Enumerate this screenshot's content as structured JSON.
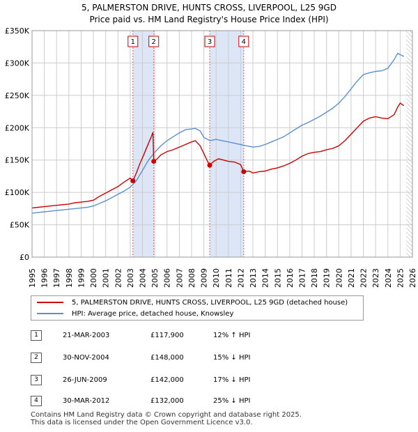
{
  "title_line1": "5, PALMERSTON DRIVE, HUNTS CROSS, LIVERPOOL, L25 9GD",
  "title_line2": "Price paid vs. HM Land Registry's House Price Index (HPI)",
  "colors": {
    "property": "#cc0000",
    "hpi": "#5b8fd0",
    "band": "#dde6f7",
    "marker_line": "#d06060",
    "grid": "#cccccc"
  },
  "chart_data": {
    "type": "line",
    "xlim": [
      1995,
      2026
    ],
    "ylim": [
      0,
      350000
    ],
    "yticks": [
      {
        "value": 0,
        "label": "£0"
      },
      {
        "value": 50000,
        "label": "£50K"
      },
      {
        "value": 100000,
        "label": "£100K"
      },
      {
        "value": 150000,
        "label": "£150K"
      },
      {
        "value": 200000,
        "label": "£200K"
      },
      {
        "value": 250000,
        "label": "£250K"
      },
      {
        "value": 300000,
        "label": "£300K"
      },
      {
        "value": 350000,
        "label": "£350K"
      }
    ],
    "xticks": [
      "1995",
      "1996",
      "1997",
      "1998",
      "1999",
      "2000",
      "2001",
      "2002",
      "2003",
      "2004",
      "2005",
      "2006",
      "2007",
      "2008",
      "2009",
      "2010",
      "2011",
      "2012",
      "2013",
      "2014",
      "2015",
      "2016",
      "2017",
      "2018",
      "2019",
      "2020",
      "2021",
      "2022",
      "2023",
      "2024",
      "2025",
      "2026"
    ],
    "shaded_bands": [
      [
        2003.22,
        2004.92
      ],
      [
        2009.48,
        2012.25
      ]
    ],
    "series": [
      {
        "name": "5, PALMERSTON DRIVE, HUNTS CROSS, LIVERPOOL, L25 9GD (detached house)",
        "color": "#cc0000",
        "points": [
          [
            1995.0,
            76000
          ],
          [
            1995.5,
            77000
          ],
          [
            1996.0,
            78000
          ],
          [
            1996.5,
            79000
          ],
          [
            1997.0,
            80000
          ],
          [
            1997.5,
            81000
          ],
          [
            1998.0,
            82000
          ],
          [
            1998.5,
            84000
          ],
          [
            1999.0,
            85000
          ],
          [
            1999.5,
            86000
          ],
          [
            2000.0,
            88000
          ],
          [
            2000.5,
            94000
          ],
          [
            2001.0,
            99000
          ],
          [
            2001.5,
            104000
          ],
          [
            2002.0,
            109000
          ],
          [
            2002.5,
            116000
          ],
          [
            2003.0,
            122000
          ],
          [
            2003.22,
            117900
          ],
          [
            2003.5,
            130000
          ],
          [
            2003.8,
            145000
          ],
          [
            2004.1,
            158000
          ],
          [
            2004.4,
            172000
          ],
          [
            2004.7,
            185000
          ],
          [
            2004.85,
            193000
          ],
          [
            2004.92,
            148000
          ],
          [
            2005.2,
            152000
          ],
          [
            2005.5,
            158000
          ],
          [
            2006.0,
            163000
          ],
          [
            2006.5,
            166000
          ],
          [
            2007.0,
            170000
          ],
          [
            2007.5,
            174000
          ],
          [
            2008.0,
            178000
          ],
          [
            2008.3,
            180000
          ],
          [
            2008.7,
            172000
          ],
          [
            2009.0,
            160000
          ],
          [
            2009.3,
            148000
          ],
          [
            2009.48,
            142000
          ],
          [
            2009.8,
            148000
          ],
          [
            2010.2,
            152000
          ],
          [
            2010.6,
            150000
          ],
          [
            2011.0,
            148000
          ],
          [
            2011.5,
            147000
          ],
          [
            2012.0,
            143000
          ],
          [
            2012.25,
            132000
          ],
          [
            2012.7,
            133000
          ],
          [
            2013.0,
            130000
          ],
          [
            2013.5,
            132000
          ],
          [
            2014.0,
            133000
          ],
          [
            2014.5,
            136000
          ],
          [
            2015.0,
            138000
          ],
          [
            2015.5,
            141000
          ],
          [
            2016.0,
            145000
          ],
          [
            2016.5,
            150000
          ],
          [
            2017.0,
            156000
          ],
          [
            2017.5,
            160000
          ],
          [
            2018.0,
            162000
          ],
          [
            2018.5,
            163000
          ],
          [
            2019.0,
            166000
          ],
          [
            2019.5,
            168000
          ],
          [
            2020.0,
            172000
          ],
          [
            2020.5,
            180000
          ],
          [
            2021.0,
            190000
          ],
          [
            2021.5,
            200000
          ],
          [
            2022.0,
            210000
          ],
          [
            2022.5,
            215000
          ],
          [
            2023.0,
            217000
          ],
          [
            2023.5,
            215000
          ],
          [
            2024.0,
            214000
          ],
          [
            2024.5,
            220000
          ],
          [
            2024.8,
            232000
          ],
          [
            2025.0,
            238000
          ],
          [
            2025.3,
            234000
          ]
        ]
      },
      {
        "name": "HPI: Average price, detached house, Knowsley",
        "color": "#5b8fd0",
        "points": [
          [
            1995.0,
            68000
          ],
          [
            1995.5,
            69000
          ],
          [
            1996.0,
            70000
          ],
          [
            1996.5,
            71000
          ],
          [
            1997.0,
            72000
          ],
          [
            1997.5,
            73000
          ],
          [
            1998.0,
            74000
          ],
          [
            1998.5,
            75000
          ],
          [
            1999.0,
            76000
          ],
          [
            1999.5,
            77000
          ],
          [
            2000.0,
            79000
          ],
          [
            2000.5,
            83000
          ],
          [
            2001.0,
            87000
          ],
          [
            2001.5,
            92000
          ],
          [
            2002.0,
            97000
          ],
          [
            2002.5,
            102000
          ],
          [
            2003.0,
            108000
          ],
          [
            2003.5,
            118000
          ],
          [
            2004.0,
            134000
          ],
          [
            2004.5,
            150000
          ],
          [
            2005.0,
            162000
          ],
          [
            2005.5,
            172000
          ],
          [
            2006.0,
            180000
          ],
          [
            2006.5,
            186000
          ],
          [
            2007.0,
            192000
          ],
          [
            2007.5,
            197000
          ],
          [
            2008.0,
            198000
          ],
          [
            2008.3,
            199000
          ],
          [
            2008.7,
            195000
          ],
          [
            2009.0,
            185000
          ],
          [
            2009.5,
            180000
          ],
          [
            2010.0,
            182000
          ],
          [
            2010.5,
            180000
          ],
          [
            2011.0,
            178000
          ],
          [
            2011.5,
            176000
          ],
          [
            2012.0,
            174000
          ],
          [
            2012.5,
            172000
          ],
          [
            2013.0,
            170000
          ],
          [
            2013.5,
            171000
          ],
          [
            2014.0,
            174000
          ],
          [
            2014.5,
            178000
          ],
          [
            2015.0,
            182000
          ],
          [
            2015.5,
            186000
          ],
          [
            2016.0,
            192000
          ],
          [
            2016.5,
            198000
          ],
          [
            2017.0,
            204000
          ],
          [
            2017.5,
            208000
          ],
          [
            2018.0,
            213000
          ],
          [
            2018.5,
            218000
          ],
          [
            2019.0,
            224000
          ],
          [
            2019.5,
            230000
          ],
          [
            2020.0,
            238000
          ],
          [
            2020.5,
            248000
          ],
          [
            2021.0,
            260000
          ],
          [
            2021.5,
            272000
          ],
          [
            2022.0,
            282000
          ],
          [
            2022.5,
            285000
          ],
          [
            2023.0,
            287000
          ],
          [
            2023.5,
            288000
          ],
          [
            2024.0,
            292000
          ],
          [
            2024.5,
            305000
          ],
          [
            2024.8,
            315000
          ],
          [
            2025.0,
            313000
          ],
          [
            2025.3,
            310000
          ]
        ]
      }
    ],
    "sales": [
      {
        "label": "1",
        "x": 2003.22,
        "price": 117900
      },
      {
        "label": "2",
        "x": 2004.92,
        "price": 148000
      },
      {
        "label": "3",
        "x": 2009.48,
        "price": 142000
      },
      {
        "label": "4",
        "x": 2012.25,
        "price": 132000
      }
    ]
  },
  "legend": {
    "property_label": "5, PALMERSTON DRIVE, HUNTS CROSS, LIVERPOOL, L25 9GD (detached house)",
    "hpi_label": "HPI: Average price, detached house, Knowsley"
  },
  "transactions": [
    {
      "num": "1",
      "date": "21-MAR-2003",
      "price": "£117,900",
      "hpi": "12% ↑ HPI"
    },
    {
      "num": "2",
      "date": "30-NOV-2004",
      "price": "£148,000",
      "hpi": "15% ↓ HPI"
    },
    {
      "num": "3",
      "date": "26-JUN-2009",
      "price": "£142,000",
      "hpi": "17% ↓ HPI"
    },
    {
      "num": "4",
      "date": "30-MAR-2012",
      "price": "£132,000",
      "hpi": "25% ↓ HPI"
    }
  ],
  "footer_line1": "Contains HM Land Registry data © Crown copyright and database right 2025.",
  "footer_line2": "This data is licensed under the Open Government Licence v3.0."
}
